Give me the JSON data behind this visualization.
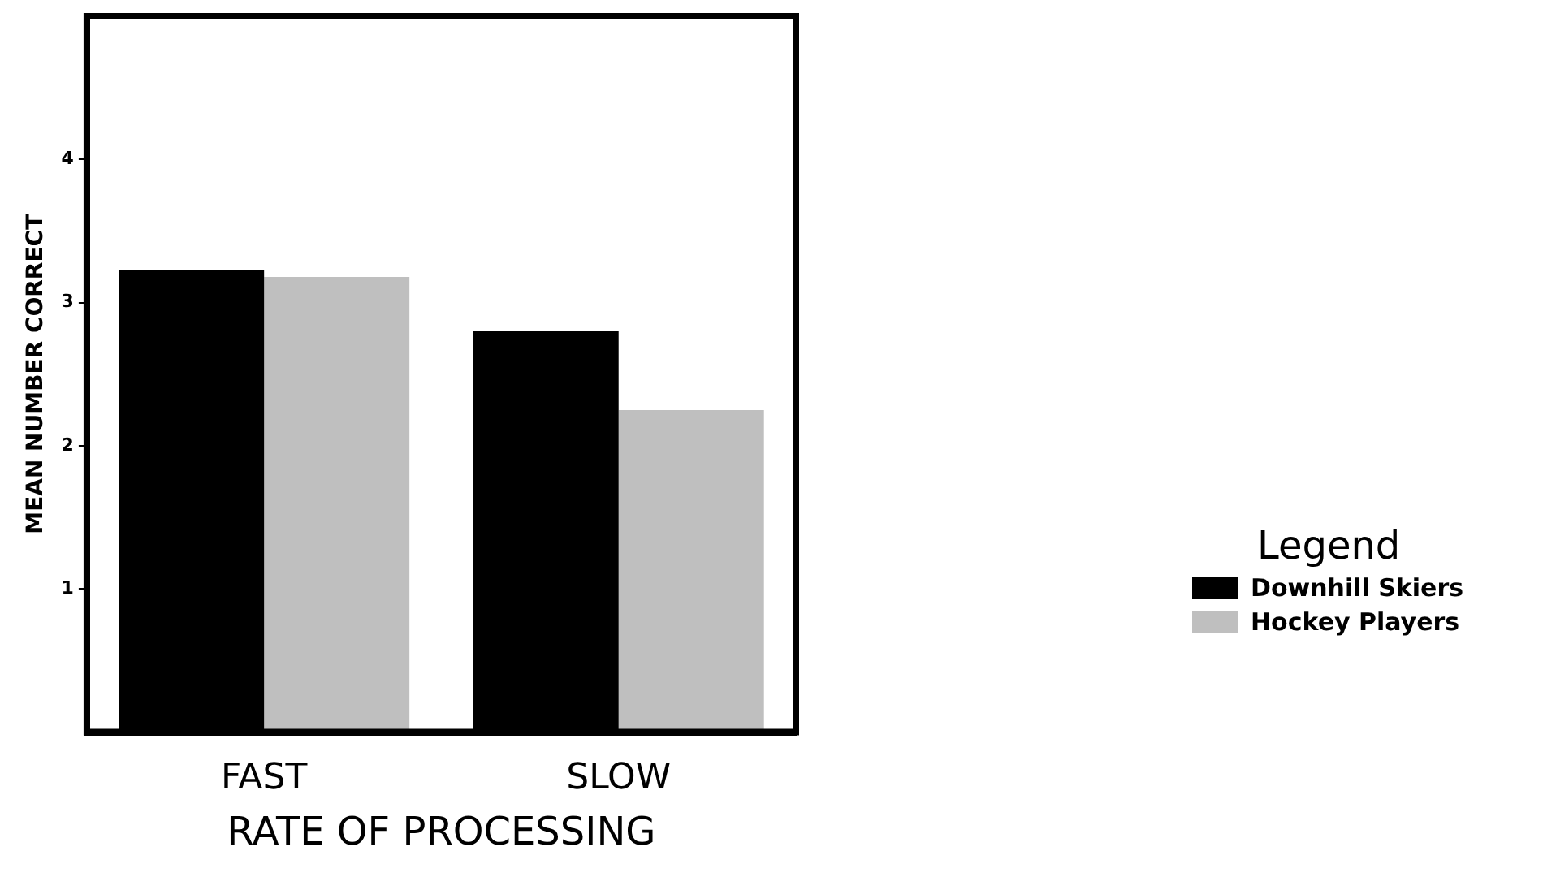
{
  "chart_data": {
    "type": "bar",
    "xlabel": "RATE OF PROCESSING",
    "ylabel": "MEAN NUMBER CORRECT",
    "legend_title": "Legend",
    "categories": [
      "FAST",
      "SLOW"
    ],
    "series": [
      {
        "name": "Downhill Skiers",
        "color": "#000000",
        "values": [
          3.23,
          2.8
        ]
      },
      {
        "name": "Hockey Players",
        "color": "#bfbfbf",
        "values": [
          3.18,
          2.25
        ]
      }
    ],
    "ylim": [
      0,
      5
    ],
    "yticks": [
      1,
      2,
      3,
      4
    ],
    "grid": false,
    "legend": "right"
  }
}
